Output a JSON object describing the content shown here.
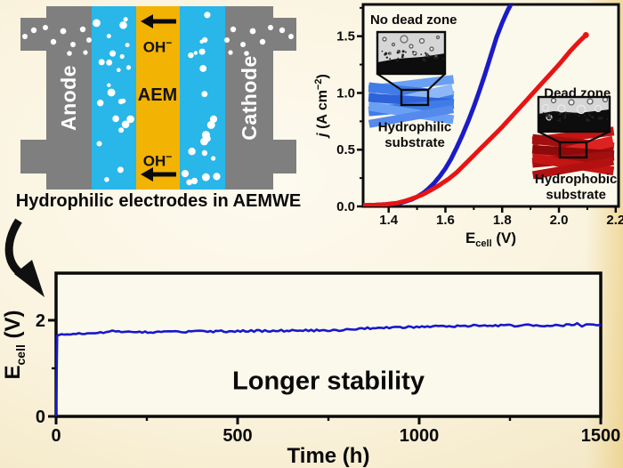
{
  "schematic": {
    "anode": "Anode",
    "cathode": "Cathode",
    "membrane": "AEM",
    "oh": {
      "base": "OH",
      "sup": "−"
    },
    "caption": "Hydrophilic electrodes in AEMWE",
    "colors": {
      "electrode": "#7f7f7f",
      "electrolyte": "#29b6e9",
      "membrane": "#f3b303",
      "bubble": "#ffffff"
    }
  },
  "chart_data": [
    {
      "id": "polarization",
      "type": "line",
      "xlabel": {
        "base": "E",
        "sub": "cell",
        "rest": " (V)"
      },
      "ylabel": {
        "pre": "j",
        "unit": " (A cm",
        "sup": "−2",
        "post": ")"
      },
      "xlim": [
        1.31,
        2.21
      ],
      "ylim": [
        0,
        1.78
      ],
      "xticks": [
        "1.4",
        "1.6",
        "1.8",
        "2.0",
        "2.2"
      ],
      "xticks_minor": [
        1.5,
        1.7,
        1.9,
        2.1
      ],
      "yticks": [
        "0.0",
        "0.5",
        "1.0",
        "1.5"
      ],
      "yticks_minor": [
        0.25,
        0.75,
        1.25,
        1.75
      ],
      "grid": false,
      "annotations": [
        {
          "text": "No dead zone",
          "x": 1.335,
          "y": 1.645,
          "anchor": "start"
        },
        {
          "text": "Dead zone",
          "x": 2.065,
          "y": 1.0,
          "anchor": "middle"
        },
        {
          "text": "Hydrophilic",
          "x": 1.492,
          "y": 0.7,
          "anchor": "middle"
        },
        {
          "text": "substrate",
          "x": 1.492,
          "y": 0.565,
          "anchor": "middle"
        },
        {
          "text": "Hydrophobic",
          "x": 2.06,
          "y": 0.245,
          "anchor": "middle"
        },
        {
          "text": "substrate",
          "x": 2.06,
          "y": 0.105,
          "anchor": "middle"
        }
      ],
      "series": [
        {
          "name": "hydrophilic-substrate-no-dead-zone",
          "color": "#1b1bc8",
          "points": [
            [
              1.31,
              0.01
            ],
            [
              1.34,
              0.01
            ],
            [
              1.37,
              0.015
            ],
            [
              1.4,
              0.02
            ],
            [
              1.42,
              0.025
            ],
            [
              1.44,
              0.03
            ],
            [
              1.46,
              0.045
            ],
            [
              1.48,
              0.06
            ],
            [
              1.5,
              0.085
            ],
            [
              1.52,
              0.115
            ],
            [
              1.54,
              0.155
            ],
            [
              1.56,
              0.205
            ],
            [
              1.58,
              0.265
            ],
            [
              1.6,
              0.335
            ],
            [
              1.62,
              0.42
            ],
            [
              1.64,
              0.52
            ],
            [
              1.66,
              0.63
            ],
            [
              1.68,
              0.75
            ],
            [
              1.7,
              0.88
            ],
            [
              1.72,
              1.02
            ],
            [
              1.74,
              1.17
            ],
            [
              1.76,
              1.33
            ],
            [
              1.78,
              1.49
            ],
            [
              1.8,
              1.62
            ],
            [
              1.82,
              1.73
            ],
            [
              1.835,
              1.8
            ]
          ]
        },
        {
          "name": "hydrophobic-substrate-dead-zone",
          "color": "#e81414",
          "points": [
            [
              1.31,
              0.01
            ],
            [
              1.35,
              0.012
            ],
            [
              1.39,
              0.018
            ],
            [
              1.43,
              0.03
            ],
            [
              1.46,
              0.05
            ],
            [
              1.49,
              0.075
            ],
            [
              1.52,
              0.105
            ],
            [
              1.55,
              0.145
            ],
            [
              1.58,
              0.19
            ],
            [
              1.61,
              0.24
            ],
            [
              1.64,
              0.3
            ],
            [
              1.68,
              0.4
            ],
            [
              1.72,
              0.5
            ],
            [
              1.76,
              0.6
            ],
            [
              1.8,
              0.7
            ],
            [
              1.84,
              0.81
            ],
            [
              1.88,
              0.92
            ],
            [
              1.92,
              1.03
            ],
            [
              1.96,
              1.14
            ],
            [
              2.0,
              1.25
            ],
            [
              2.04,
              1.37
            ],
            [
              2.07,
              1.45
            ],
            [
              2.095,
              1.51
            ]
          ]
        }
      ]
    },
    {
      "id": "stability",
      "type": "line",
      "xlabel": "Time (h)",
      "ylabel": {
        "base": "E",
        "sub": "cell",
        "rest": " (V)"
      },
      "xlim": [
        0,
        1500
      ],
      "ylim": [
        0,
        2.98
      ],
      "xticks": [
        "0",
        "500",
        "1000",
        "1500"
      ],
      "xticks_minor": [
        250,
        750,
        1250
      ],
      "yticks": [
        "0",
        "2"
      ],
      "yticks_minor": [
        1
      ],
      "grid": false,
      "annotations": [
        {
          "text": "Longer stability",
          "x": 750,
          "y": 0.75,
          "anchor": "middle"
        }
      ],
      "series": [
        {
          "name": "cell-voltage",
          "color": "#1717cc",
          "points": [
            [
              0,
              0
            ],
            [
              3,
              1.68
            ],
            [
              15,
              1.7
            ],
            [
              40,
              1.71
            ],
            [
              70,
              1.72
            ],
            [
              100,
              1.735
            ],
            [
              130,
              1.745
            ],
            [
              155,
              1.77
            ],
            [
              165,
              1.755
            ],
            [
              180,
              1.765
            ],
            [
              200,
              1.755
            ],
            [
              230,
              1.76
            ],
            [
              260,
              1.755
            ],
            [
              290,
              1.76
            ],
            [
              320,
              1.765
            ],
            [
              350,
              1.76
            ],
            [
              380,
              1.765
            ],
            [
              410,
              1.765
            ],
            [
              440,
              1.77
            ],
            [
              470,
              1.77
            ],
            [
              500,
              1.775
            ],
            [
              530,
              1.775
            ],
            [
              560,
              1.78
            ],
            [
              590,
              1.78
            ],
            [
              620,
              1.785
            ],
            [
              650,
              1.785
            ],
            [
              680,
              1.79
            ],
            [
              710,
              1.79
            ],
            [
              740,
              1.79
            ],
            [
              770,
              1.785
            ],
            [
              790,
              1.775
            ],
            [
              800,
              1.81
            ],
            [
              820,
              1.825
            ],
            [
              850,
              1.835
            ],
            [
              880,
              1.84
            ],
            [
              910,
              1.85
            ],
            [
              940,
              1.855
            ],
            [
              970,
              1.86
            ],
            [
              1000,
              1.865
            ],
            [
              1030,
              1.87
            ],
            [
              1060,
              1.875
            ],
            [
              1090,
              1.875
            ],
            [
              1120,
              1.88
            ],
            [
              1150,
              1.89
            ],
            [
              1165,
              1.865
            ],
            [
              1180,
              1.885
            ],
            [
              1210,
              1.885
            ],
            [
              1240,
              1.89
            ],
            [
              1270,
              1.89
            ],
            [
              1300,
              1.893
            ],
            [
              1330,
              1.895
            ],
            [
              1360,
              1.895
            ],
            [
              1390,
              1.9
            ],
            [
              1420,
              1.9
            ],
            [
              1435,
              1.925
            ],
            [
              1448,
              1.87
            ],
            [
              1460,
              1.905
            ],
            [
              1480,
              1.91
            ],
            [
              1500,
              1.915
            ]
          ]
        }
      ]
    }
  ]
}
